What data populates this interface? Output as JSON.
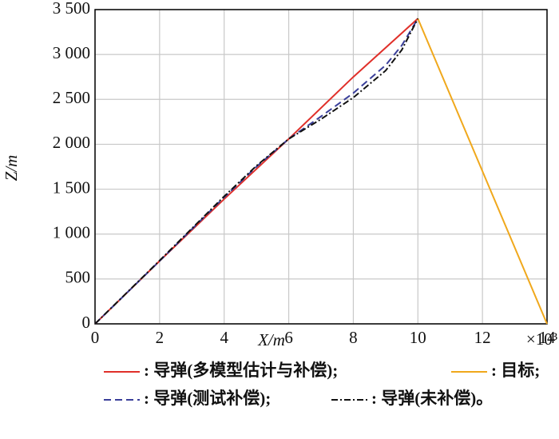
{
  "chart_data": {
    "type": "line",
    "x_label": "X/m",
    "y_label": "Z/m",
    "x_multiplier": "×10³",
    "xlim": [
      0,
      14
    ],
    "xticks": [
      0,
      2,
      4,
      6,
      8,
      10,
      12,
      14
    ],
    "ylim": [
      0,
      3500
    ],
    "yticks": [
      0,
      500,
      {
        "value": 1000,
        "label": "1 000"
      },
      {
        "value": 1500,
        "label": "1 500"
      },
      {
        "value": 2000,
        "label": "2 000"
      },
      {
        "value": 2500,
        "label": "2 500"
      },
      {
        "value": 3000,
        "label": "3 000"
      },
      {
        "value": 3500,
        "label": "3 500"
      }
    ],
    "grid": true,
    "series": [
      {
        "name": ": 导弹(多模型估计与补偿);",
        "color": "#e0302a",
        "dash": "none",
        "x": [
          0,
          2,
          4,
          6,
          8,
          10
        ],
        "values": [
          0,
          700,
          1390,
          2060,
          2750,
          3400
        ]
      },
      {
        "name": ": 目标;",
        "color": "#f0a81c",
        "dash": "none",
        "x": [
          10,
          14
        ],
        "values": [
          3400,
          0
        ]
      },
      {
        "name": ": 导弹(测试补偿);",
        "color": "#3a3f9a",
        "dash": "9,5",
        "x": [
          0,
          2,
          4,
          5,
          6,
          7,
          8,
          9,
          9.5,
          10
        ],
        "values": [
          0,
          700,
          1410,
          1750,
          2060,
          2310,
          2570,
          2880,
          3100,
          3400
        ]
      },
      {
        "name": ": 导弹(未补偿)。",
        "color": "#111111",
        "dash": "8,3,2,3",
        "x": [
          0,
          2,
          4,
          5,
          6,
          7,
          8,
          9,
          9.5,
          10
        ],
        "values": [
          0,
          705,
          1420,
          1760,
          2060,
          2280,
          2520,
          2820,
          3050,
          3400
        ]
      }
    ]
  }
}
